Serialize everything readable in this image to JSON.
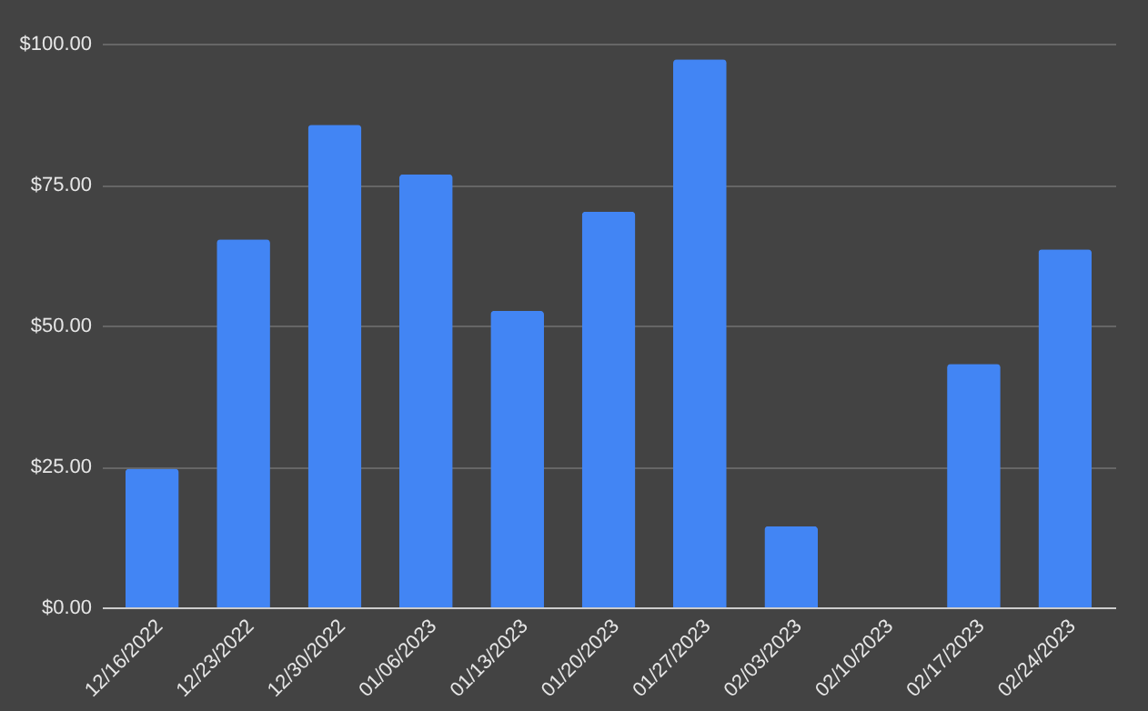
{
  "chart_data": {
    "type": "bar",
    "categories": [
      "12/16/2022",
      "12/23/2022",
      "12/30/2022",
      "01/06/2023",
      "01/13/2023",
      "01/20/2023",
      "01/27/2023",
      "02/03/2023",
      "02/10/2023",
      "02/17/2023",
      "02/24/2023"
    ],
    "values": [
      24.6,
      65.3,
      85.6,
      76.8,
      52.6,
      70.2,
      97.2,
      14.4,
      0,
      43.2,
      63.5
    ],
    "color": "#4285f4",
    "ylim": [
      0,
      100
    ],
    "yticks": [
      {
        "value": 0,
        "label": "$0.00"
      },
      {
        "value": 25,
        "label": "$25.00"
      },
      {
        "value": 50,
        "label": "$50.00"
      },
      {
        "value": 75,
        "label": "$75.00"
      },
      {
        "value": 100,
        "label": "$100.00"
      }
    ],
    "grid": "y"
  }
}
